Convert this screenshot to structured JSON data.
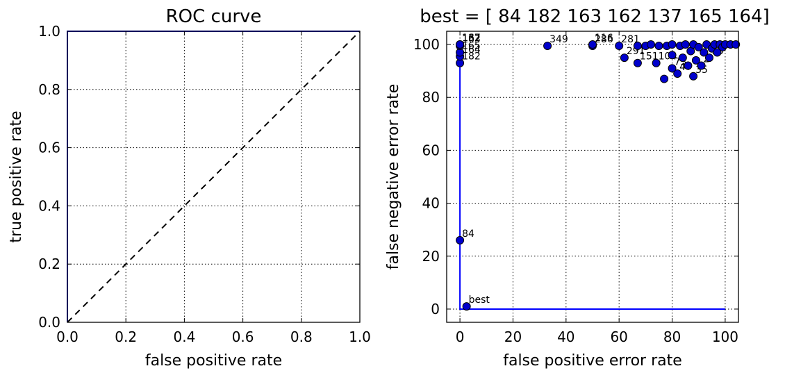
{
  "chart_data": [
    {
      "type": "line",
      "title": "ROC curve",
      "xlabel": "false positive rate",
      "ylabel": "true positive rate",
      "xlim": [
        0.0,
        1.0
      ],
      "ylim": [
        0.0,
        1.0
      ],
      "xticks": [
        "0.0",
        "0.2",
        "0.4",
        "0.6",
        "0.8",
        "1.0"
      ],
      "yticks": [
        "0.0",
        "0.2",
        "0.4",
        "0.6",
        "0.8",
        "1.0"
      ],
      "grid": true,
      "series": [
        {
          "style": "solid",
          "color": "#0000ff",
          "x": [
            0.0,
            0.0,
            1.0
          ],
          "y": [
            0.0,
            1.0,
            1.0
          ]
        },
        {
          "style": "dashed",
          "color": "#000000",
          "x": [
            0.0,
            1.0
          ],
          "y": [
            0.0,
            1.0
          ]
        }
      ]
    },
    {
      "type": "scatter",
      "title": "best = [ 84 182 163 162 137 165 164]",
      "xlabel": "false positive error rate",
      "ylabel": "false negative error rate",
      "xlim": [
        -5,
        105
      ],
      "ylim": [
        -5,
        105
      ],
      "xticks": [
        "0",
        "20",
        "40",
        "60",
        "80",
        "100"
      ],
      "yticks": [
        "0",
        "20",
        "40",
        "60",
        "80",
        "100"
      ],
      "grid": true,
      "line": {
        "color": "#0000ff",
        "x": [
          0,
          0,
          100
        ],
        "y": [
          100,
          0,
          0
        ]
      },
      "marker_color": "#0000cc",
      "points": [
        {
          "x": 2.5,
          "y": 1,
          "label": "best"
        },
        {
          "x": 0,
          "y": 26,
          "label": "84"
        },
        {
          "x": 0,
          "y": 93,
          "label": "182"
        },
        {
          "x": 0,
          "y": 95.5,
          "label": "164"
        },
        {
          "x": 0,
          "y": 97,
          "label": "165"
        },
        {
          "x": 0,
          "y": 99.5,
          "label": "163"
        },
        {
          "x": 0,
          "y": 100,
          "label": "162"
        },
        {
          "x": 0,
          "y": 100,
          "label": "137"
        },
        {
          "x": 33,
          "y": 99.5,
          "label": "349"
        },
        {
          "x": 50,
          "y": 99.5,
          "label": "286"
        },
        {
          "x": 50,
          "y": 100,
          "label": "116"
        },
        {
          "x": 60,
          "y": 99.5,
          "label": "281"
        },
        {
          "x": 62,
          "y": 95,
          "label": "291"
        },
        {
          "x": 67,
          "y": 93,
          "label": "151"
        },
        {
          "x": 67,
          "y": 99.5,
          "label": ""
        },
        {
          "x": 70,
          "y": 99.5,
          "label": ""
        },
        {
          "x": 72,
          "y": 100,
          "label": ""
        },
        {
          "x": 74,
          "y": 93,
          "label": "104"
        },
        {
          "x": 75,
          "y": 99.5,
          "label": ""
        },
        {
          "x": 77,
          "y": 87,
          "label": ""
        },
        {
          "x": 78,
          "y": 99.5,
          "label": ""
        },
        {
          "x": 80,
          "y": 91,
          "label": "73"
        },
        {
          "x": 80,
          "y": 96,
          "label": ""
        },
        {
          "x": 80,
          "y": 100,
          "label": ""
        },
        {
          "x": 82,
          "y": 89,
          "label": "47"
        },
        {
          "x": 83,
          "y": 99.5,
          "label": ""
        },
        {
          "x": 84,
          "y": 95,
          "label": ""
        },
        {
          "x": 85,
          "y": 100,
          "label": ""
        },
        {
          "x": 86,
          "y": 92,
          "label": ""
        },
        {
          "x": 87,
          "y": 97.5,
          "label": ""
        },
        {
          "x": 88,
          "y": 88,
          "label": "35"
        },
        {
          "x": 88,
          "y": 100,
          "label": ""
        },
        {
          "x": 89,
          "y": 94,
          "label": ""
        },
        {
          "x": 90,
          "y": 99,
          "label": ""
        },
        {
          "x": 91,
          "y": 92,
          "label": "2"
        },
        {
          "x": 92,
          "y": 97,
          "label": ""
        },
        {
          "x": 93,
          "y": 100,
          "label": ""
        },
        {
          "x": 94,
          "y": 95,
          "label": "10"
        },
        {
          "x": 95,
          "y": 98.5,
          "label": ""
        },
        {
          "x": 96,
          "y": 100,
          "label": ""
        },
        {
          "x": 97,
          "y": 97,
          "label": "9"
        },
        {
          "x": 98,
          "y": 100,
          "label": ""
        },
        {
          "x": 99,
          "y": 99,
          "label": ""
        },
        {
          "x": 100,
          "y": 100,
          "label": ""
        },
        {
          "x": 102,
          "y": 100,
          "label": ""
        },
        {
          "x": 104,
          "y": 100,
          "label": ""
        }
      ]
    }
  ]
}
